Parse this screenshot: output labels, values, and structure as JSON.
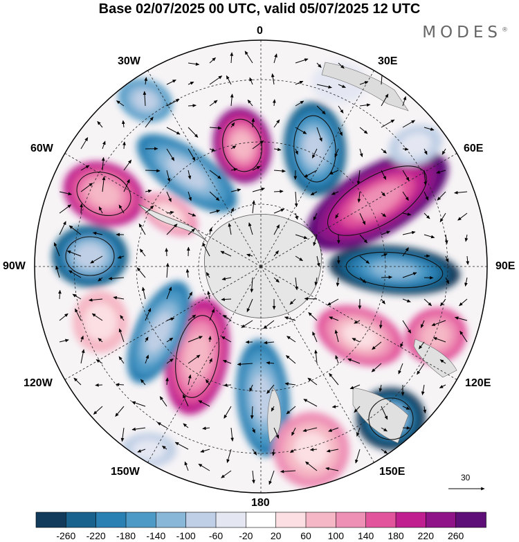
{
  "header": {
    "title": "Base 02/07/2025 00 UTC, valid 05/07/2025 12 UTC",
    "brand": "MODES",
    "brand_mark": "®"
  },
  "map": {
    "projection": "south-polar-stereographic",
    "lon_labels": {
      "lon_0": "0",
      "lon_30e": "30E",
      "lon_60e": "60E",
      "lon_90e": "90E",
      "lon_120e": "120E",
      "lon_150e": "150E",
      "lon_180": "180",
      "lon_150w": "150W",
      "lon_120w": "120W",
      "lon_90w": "90W",
      "lon_60w": "60W",
      "lon_30w": "30W"
    },
    "reference_vector": "30",
    "colors": {
      "land": "#dcdcdc",
      "positive_max": "#5b0f6d",
      "negative_max": "#0f3d5e"
    }
  },
  "colorbar": {
    "labels": [
      "-260",
      "-220",
      "-180",
      "-140",
      "-100",
      "-60",
      "-20",
      "20",
      "60",
      "100",
      "140",
      "180",
      "220",
      "260"
    ],
    "colors": [
      "#123a5a",
      "#19628d",
      "#2b80b3",
      "#4e9ac6",
      "#89b7d8",
      "#bfcfe5",
      "#e4e7f2",
      "#ffffff",
      "#fbdfe2",
      "#f5b7c5",
      "#ee8fb5",
      "#e2549c",
      "#c0208f",
      "#8e1488",
      "#5e0f78"
    ]
  }
}
